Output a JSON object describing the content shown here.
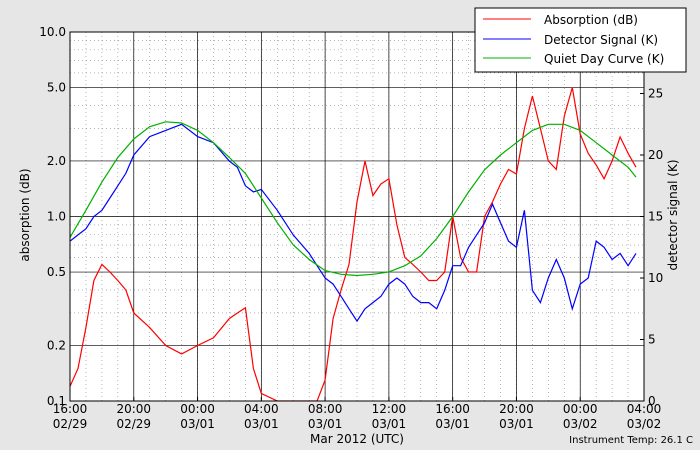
{
  "chart_data": {
    "type": "line",
    "xlabel": "Mar 2012 (UTC)",
    "ylabel_left": "absorption (dB)",
    "ylabel_right": "detector signal (K)",
    "footer": "Instrument Temp: 26.1 C",
    "x_range": [
      "2012-02-29 16:00",
      "2012-03-02 04:00"
    ],
    "x_ticks": [
      {
        "x": "2012-02-29 16:00",
        "time": "16:00",
        "date": "02/29"
      },
      {
        "x": "2012-02-29 20:00",
        "time": "20:00",
        "date": "02/29"
      },
      {
        "x": "2012-03-01 00:00",
        "time": "00:00",
        "date": "03/01"
      },
      {
        "x": "2012-03-01 04:00",
        "time": "04:00",
        "date": "03/01"
      },
      {
        "x": "2012-03-01 08:00",
        "time": "08:00",
        "date": "03/01"
      },
      {
        "x": "2012-03-01 12:00",
        "time": "12:00",
        "date": "03/01"
      },
      {
        "x": "2012-03-01 16:00",
        "time": "16:00",
        "date": "03/01"
      },
      {
        "x": "2012-03-01 20:00",
        "time": "20:00",
        "date": "03/01"
      },
      {
        "x": "2012-03-02 00:00",
        "time": "00:00",
        "date": "03/02"
      },
      {
        "x": "2012-03-02 04:00",
        "time": "04:00",
        "date": "03/02"
      }
    ],
    "y_left": {
      "scale": "log",
      "range": [
        0.1,
        10.0
      ],
      "ticks": [
        "0.1",
        "0.2",
        "0.5",
        "1.0",
        "2.0",
        "5.0",
        "10.0"
      ]
    },
    "y_right": {
      "scale": "linear",
      "range": [
        0,
        30
      ],
      "ticks": [
        "0",
        "5",
        "10",
        "15",
        "20",
        "25"
      ]
    },
    "grid": true,
    "legend_position": "top-right",
    "series": [
      {
        "name": "Absorption (dB)",
        "color": "#ff0000",
        "axis": "left",
        "x": [
          "2012-02-29 16:00",
          "2012-02-29 16:30",
          "2012-02-29 17:00",
          "2012-02-29 17:30",
          "2012-02-29 18:00",
          "2012-02-29 18:30",
          "2012-02-29 19:00",
          "2012-02-29 19:30",
          "2012-02-29 20:00",
          "2012-02-29 21:00",
          "2012-02-29 22:00",
          "2012-02-29 23:00",
          "2012-03-01 00:00",
          "2012-03-01 01:00",
          "2012-03-01 02:00",
          "2012-03-01 02:30",
          "2012-03-01 03:00",
          "2012-03-01 03:30",
          "2012-03-01 04:00",
          "2012-03-01 05:00",
          "2012-03-01 06:00",
          "2012-03-01 07:00",
          "2012-03-01 07:30",
          "2012-03-01 08:00",
          "2012-03-01 08:30",
          "2012-03-01 09:00",
          "2012-03-01 09:30",
          "2012-03-01 10:00",
          "2012-03-01 10:30",
          "2012-03-01 11:00",
          "2012-03-01 11:30",
          "2012-03-01 12:00",
          "2012-03-01 12:30",
          "2012-03-01 13:00",
          "2012-03-01 13:30",
          "2012-03-01 14:00",
          "2012-03-01 14:30",
          "2012-03-01 15:00",
          "2012-03-01 15:30",
          "2012-03-01 16:00",
          "2012-03-01 16:30",
          "2012-03-01 17:00",
          "2012-03-01 17:30",
          "2012-03-01 18:00",
          "2012-03-01 18:30",
          "2012-03-01 19:00",
          "2012-03-01 19:30",
          "2012-03-01 20:00",
          "2012-03-01 20:30",
          "2012-03-01 21:00",
          "2012-03-01 21:30",
          "2012-03-01 22:00",
          "2012-03-01 22:30",
          "2012-03-01 23:00",
          "2012-03-01 23:30",
          "2012-03-02 00:00",
          "2012-03-02 00:30",
          "2012-03-02 01:00",
          "2012-03-02 01:30",
          "2012-03-02 02:00",
          "2012-03-02 02:30",
          "2012-03-02 03:00",
          "2012-03-02 03:30"
        ],
        "y": [
          0.12,
          0.15,
          0.25,
          0.45,
          0.55,
          0.5,
          0.45,
          0.4,
          0.3,
          0.25,
          0.2,
          0.18,
          0.2,
          0.22,
          0.28,
          0.3,
          0.32,
          0.15,
          0.11,
          0.1,
          0.1,
          0.1,
          0.1,
          0.13,
          0.28,
          0.4,
          0.55,
          1.2,
          2.0,
          1.3,
          1.5,
          1.6,
          0.9,
          0.6,
          0.55,
          0.5,
          0.45,
          0.45,
          0.5,
          1.0,
          0.6,
          0.5,
          0.5,
          1.0,
          1.2,
          1.5,
          1.8,
          1.7,
          3.0,
          4.5,
          3.0,
          2.0,
          1.8,
          3.5,
          5.0,
          2.8,
          2.2,
          1.9,
          1.6,
          2.0,
          2.7,
          2.2,
          1.85
        ]
      },
      {
        "name": "Detector Signal (K)",
        "color": "#0000ff",
        "axis": "right",
        "x": [
          "2012-02-29 16:00",
          "2012-02-29 16:30",
          "2012-02-29 17:00",
          "2012-02-29 17:30",
          "2012-02-29 18:00",
          "2012-02-29 18:30",
          "2012-02-29 19:00",
          "2012-02-29 19:30",
          "2012-02-29 20:00",
          "2012-02-29 21:00",
          "2012-02-29 22:00",
          "2012-02-29 23:00",
          "2012-03-01 00:00",
          "2012-03-01 01:00",
          "2012-03-01 02:00",
          "2012-03-01 02:30",
          "2012-03-01 03:00",
          "2012-03-01 03:30",
          "2012-03-01 04:00",
          "2012-03-01 05:00",
          "2012-03-01 06:00",
          "2012-03-01 07:00",
          "2012-03-01 07:30",
          "2012-03-01 08:00",
          "2012-03-01 08:30",
          "2012-03-01 09:00",
          "2012-03-01 09:30",
          "2012-03-01 10:00",
          "2012-03-01 10:30",
          "2012-03-01 11:00",
          "2012-03-01 11:30",
          "2012-03-01 12:00",
          "2012-03-01 12:30",
          "2012-03-01 13:00",
          "2012-03-01 13:30",
          "2012-03-01 14:00",
          "2012-03-01 14:30",
          "2012-03-01 15:00",
          "2012-03-01 15:30",
          "2012-03-01 16:00",
          "2012-03-01 16:30",
          "2012-03-01 17:00",
          "2012-03-01 17:30",
          "2012-03-01 18:00",
          "2012-03-01 18:30",
          "2012-03-01 19:00",
          "2012-03-01 19:30",
          "2012-03-01 20:00",
          "2012-03-01 20:30",
          "2012-03-01 21:00",
          "2012-03-01 21:30",
          "2012-03-01 22:00",
          "2012-03-01 22:30",
          "2012-03-01 23:00",
          "2012-03-01 23:30",
          "2012-03-02 00:00",
          "2012-03-02 00:30",
          "2012-03-02 01:00",
          "2012-03-02 01:30",
          "2012-03-02 02:00",
          "2012-03-02 02:30",
          "2012-03-02 03:00",
          "2012-03-02 03:30"
        ],
        "y": [
          13.0,
          13.5,
          14.0,
          15.0,
          15.5,
          16.5,
          17.5,
          18.5,
          20.0,
          21.5,
          22.0,
          22.5,
          21.5,
          21.0,
          19.5,
          19.0,
          17.5,
          17.0,
          17.2,
          15.5,
          13.5,
          12.0,
          11.0,
          10.0,
          9.5,
          8.5,
          7.5,
          6.5,
          7.5,
          8.0,
          8.5,
          9.5,
          10.0,
          9.5,
          8.5,
          8.0,
          8.0,
          7.5,
          9.0,
          11.0,
          11.0,
          12.5,
          13.5,
          14.5,
          16.0,
          14.5,
          13.0,
          12.5,
          15.5,
          9.0,
          8.0,
          10.0,
          11.5,
          10.0,
          7.5,
          9.5,
          10.0,
          13.0,
          12.5,
          11.5,
          12.0,
          11.0,
          12.0
        ]
      },
      {
        "name": "Quiet Day Curve (K)",
        "color": "#00b000",
        "axis": "right",
        "x": [
          "2012-02-29 16:00",
          "2012-02-29 17:00",
          "2012-02-29 18:00",
          "2012-02-29 19:00",
          "2012-02-29 20:00",
          "2012-02-29 21:00",
          "2012-02-29 22:00",
          "2012-02-29 23:00",
          "2012-03-01 00:00",
          "2012-03-01 01:00",
          "2012-03-01 02:00",
          "2012-03-01 03:00",
          "2012-03-01 04:00",
          "2012-03-01 05:00",
          "2012-03-01 06:00",
          "2012-03-01 07:00",
          "2012-03-01 08:00",
          "2012-03-01 09:00",
          "2012-03-01 10:00",
          "2012-03-01 11:00",
          "2012-03-01 12:00",
          "2012-03-01 13:00",
          "2012-03-01 14:00",
          "2012-03-01 15:00",
          "2012-03-01 16:00",
          "2012-03-01 17:00",
          "2012-03-01 18:00",
          "2012-03-01 19:00",
          "2012-03-01 20:00",
          "2012-03-01 21:00",
          "2012-03-01 22:00",
          "2012-03-01 23:00",
          "2012-03-02 00:00",
          "2012-03-02 01:00",
          "2012-03-02 02:00",
          "2012-03-02 03:00",
          "2012-03-02 03:30"
        ],
        "y": [
          13.3,
          15.5,
          17.8,
          19.8,
          21.3,
          22.3,
          22.7,
          22.6,
          22.0,
          21.0,
          19.8,
          18.5,
          16.5,
          14.5,
          12.7,
          11.5,
          10.6,
          10.3,
          10.2,
          10.3,
          10.5,
          11.0,
          11.8,
          13.2,
          15.0,
          17.0,
          18.8,
          20.0,
          21.0,
          22.0,
          22.5,
          22.5,
          22.0,
          21.0,
          20.0,
          19.0,
          18.2
        ]
      }
    ]
  }
}
